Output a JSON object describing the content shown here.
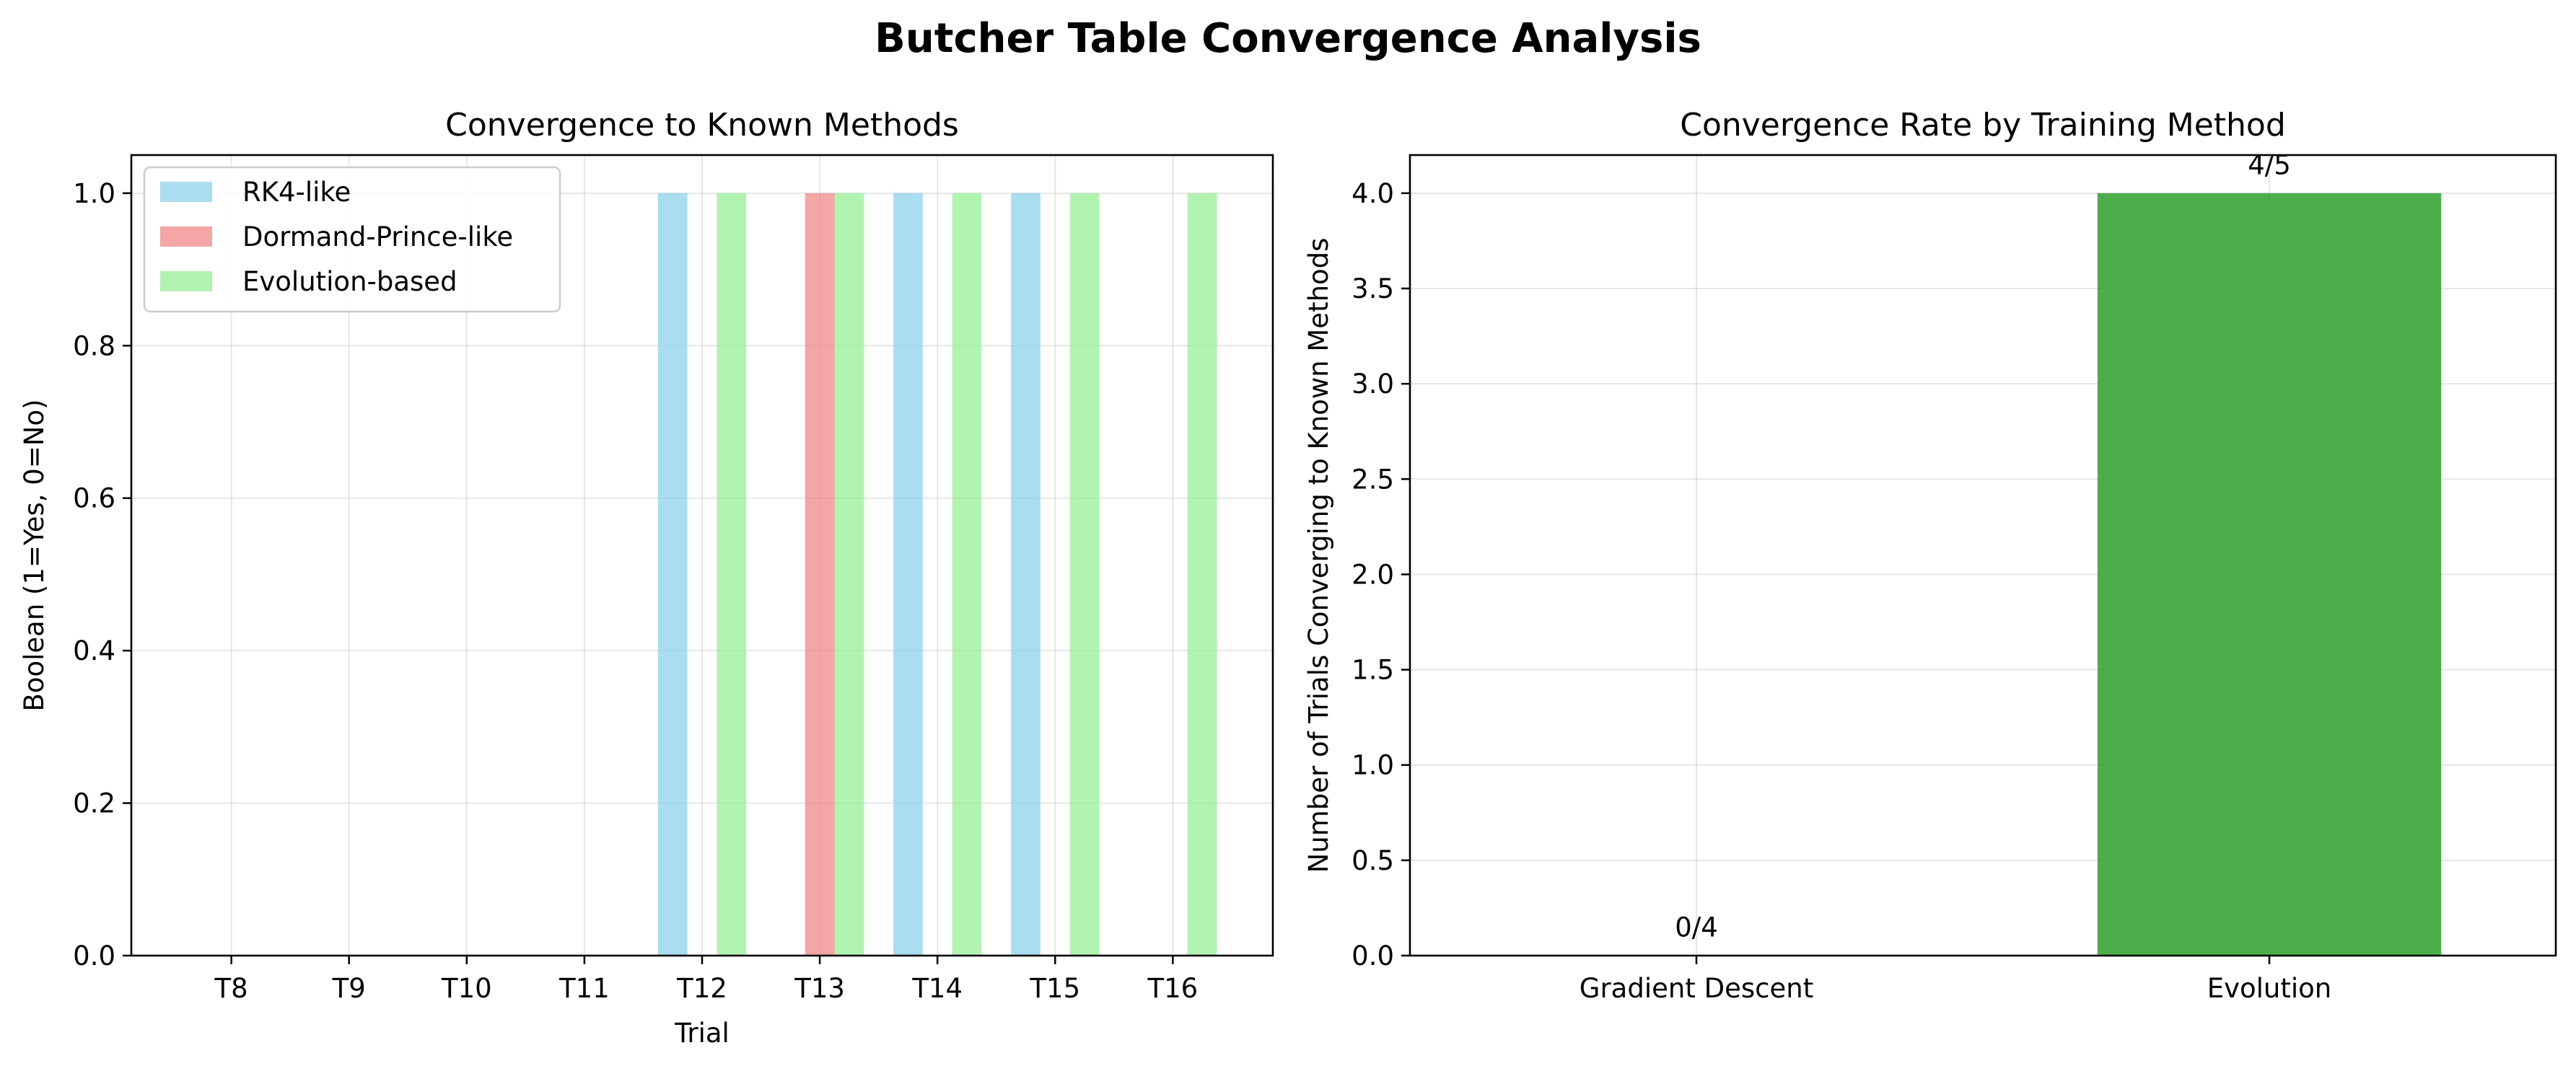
{
  "figure": {
    "title": "Butcher Table Convergence Analysis"
  },
  "chart_data": [
    {
      "type": "bar",
      "title": "Convergence to Known Methods",
      "xlabel": "Trial",
      "ylabel": "Boolean (1=Yes, 0=No)",
      "categories": [
        "T8",
        "T9",
        "T10",
        "T11",
        "T12",
        "T13",
        "T14",
        "T15",
        "T16"
      ],
      "series": [
        {
          "name": "RK4-like",
          "color": "#87CEEB",
          "values": [
            0,
            0,
            0,
            0,
            1,
            0,
            1,
            1,
            0
          ]
        },
        {
          "name": "Dormand-Prince-like",
          "color": "#F08080",
          "values": [
            0,
            0,
            0,
            0,
            0,
            1,
            0,
            0,
            0
          ]
        },
        {
          "name": "Evolution-based",
          "color": "#90EE90",
          "values": [
            0,
            0,
            0,
            0,
            1,
            1,
            1,
            1,
            1
          ]
        }
      ],
      "ylim": [
        0,
        1.05
      ],
      "yticks": [
        "0.0",
        "0.2",
        "0.4",
        "0.6",
        "0.8",
        "1.0"
      ],
      "grid": true,
      "legend": "upper-left"
    },
    {
      "type": "bar",
      "title": "Convergence Rate by Training Method",
      "xlabel": "",
      "ylabel": "Number of Trials Converging to Known Methods",
      "categories": [
        "Gradient Descent",
        "Evolution"
      ],
      "values": [
        0,
        4
      ],
      "colors": [
        "#1f77b4",
        "#2ca02c"
      ],
      "data_labels": [
        "0/4",
        "4/5"
      ],
      "ylim": [
        0,
        4.2
      ],
      "yticks": [
        "0.0",
        "0.5",
        "1.0",
        "1.5",
        "2.0",
        "2.5",
        "3.0",
        "3.5",
        "4.0"
      ],
      "grid": true
    }
  ]
}
